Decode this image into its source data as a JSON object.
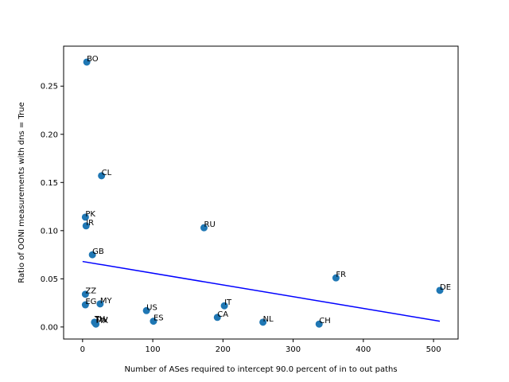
{
  "chart_data": {
    "type": "scatter",
    "xlabel": "Number of ASes required to intercept 90.0 percent of in to out paths",
    "ylabel": "Ratio of OONI measurements with dns = True",
    "xlim": [
      -27,
      535
    ],
    "ylim": [
      -0.0125,
      0.2915
    ],
    "xticks": [
      0,
      100,
      200,
      300,
      400,
      500
    ],
    "xtick_labels": [
      "0",
      "100",
      "200",
      "300",
      "400",
      "500"
    ],
    "yticks": [
      0.0,
      0.05,
      0.1,
      0.15,
      0.2,
      0.25
    ],
    "ytick_labels": [
      "0.00",
      "0.05",
      "0.10",
      "0.15",
      "0.20",
      "0.25"
    ],
    "grid": false,
    "points": [
      {
        "label": "BO",
        "x": 6,
        "y": 0.275
      },
      {
        "label": "CL",
        "x": 27,
        "y": 0.157
      },
      {
        "label": "PK",
        "x": 4,
        "y": 0.114
      },
      {
        "label": "IR",
        "x": 5,
        "y": 0.105
      },
      {
        "label": "RU",
        "x": 173,
        "y": 0.103
      },
      {
        "label": "GB",
        "x": 14,
        "y": 0.075
      },
      {
        "label": "FR",
        "x": 361,
        "y": 0.051
      },
      {
        "label": "DE",
        "x": 509,
        "y": 0.038
      },
      {
        "label": "ZZ",
        "x": 4,
        "y": 0.034
      },
      {
        "label": "MY",
        "x": 25,
        "y": 0.024
      },
      {
        "label": "EG",
        "x": 4,
        "y": 0.023
      },
      {
        "label": "IT",
        "x": 202,
        "y": 0.022
      },
      {
        "label": "US",
        "x": 91,
        "y": 0.017
      },
      {
        "label": "CA",
        "x": 192,
        "y": 0.01
      },
      {
        "label": "ES",
        "x": 101,
        "y": 0.006
      },
      {
        "label": "NL",
        "x": 257,
        "y": 0.005
      },
      {
        "label": "TH",
        "x": 17,
        "y": 0.005
      },
      {
        "label": "TW",
        "x": 18,
        "y": 0.004
      },
      {
        "label": "MX",
        "x": 19,
        "y": 0.003
      },
      {
        "label": "CH",
        "x": 337,
        "y": 0.003
      }
    ],
    "trendline": {
      "x": [
        0,
        509
      ],
      "y": [
        0.068,
        0.006
      ]
    },
    "colors": {
      "points": "#1f77b4",
      "trendline": "#0000ff",
      "axes": "#000000"
    }
  }
}
